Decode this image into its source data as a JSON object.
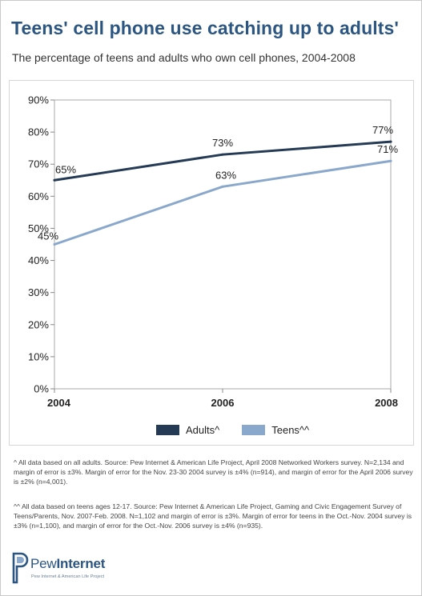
{
  "header": {
    "title": "Teens' cell phone use catching up to adults'",
    "subtitle": "The percentage of teens and adults who own cell phones, 2004-2008"
  },
  "chart_data": {
    "type": "line",
    "title": "",
    "xlabel": "",
    "ylabel": "",
    "x": [
      "2004",
      "2006",
      "2008"
    ],
    "ylim": [
      0,
      90
    ],
    "yticks": [
      0,
      10,
      20,
      30,
      40,
      50,
      60,
      70,
      80,
      90
    ],
    "ytick_labels": [
      "0%",
      "10%",
      "20%",
      "30%",
      "40%",
      "50%",
      "60%",
      "70%",
      "80%",
      "90%"
    ],
    "grid": false,
    "legend_position": "bottom",
    "series": [
      {
        "name": "Adults^",
        "values": [
          65,
          73,
          77
        ],
        "labels": [
          "65%",
          "73%",
          "77%"
        ],
        "color": "#243a55"
      },
      {
        "name": "Teens^^",
        "values": [
          45,
          63,
          71
        ],
        "labels": [
          "45%",
          "63%",
          "71%"
        ],
        "color": "#8aa8cc"
      }
    ]
  },
  "footnotes": {
    "adults": "^ All data based on all adults. Source: Pew Internet & American Life Project, April 2008 Networked Workers survey. N=2,134 and margin of error is ±3%. Margin of error for the Nov. 23-30 2004 survey is ±4% (n=914), and margin of error for the April 2006 survey is ±2% (n=4,001).",
    "teens": "^^ All data based on teens ages 12-17. Source: Pew Internet & American Life Project, Gaming and Civic Engagement Survey of Teens/Parents, Nov. 2007-Feb. 2008. N=1,102 and margin of error is ±3%. Margin of error for teens in the Oct.-Nov. 2004 survey is ±3% (n=1,100), and margin of error for the Oct.-Nov. 2006 survey is ±4% (n=935)."
  },
  "logo": {
    "name_light": "Pew",
    "name_bold": "Internet",
    "tagline": "Pew Internet & American Life Project",
    "icon": "pew-logo-icon"
  }
}
